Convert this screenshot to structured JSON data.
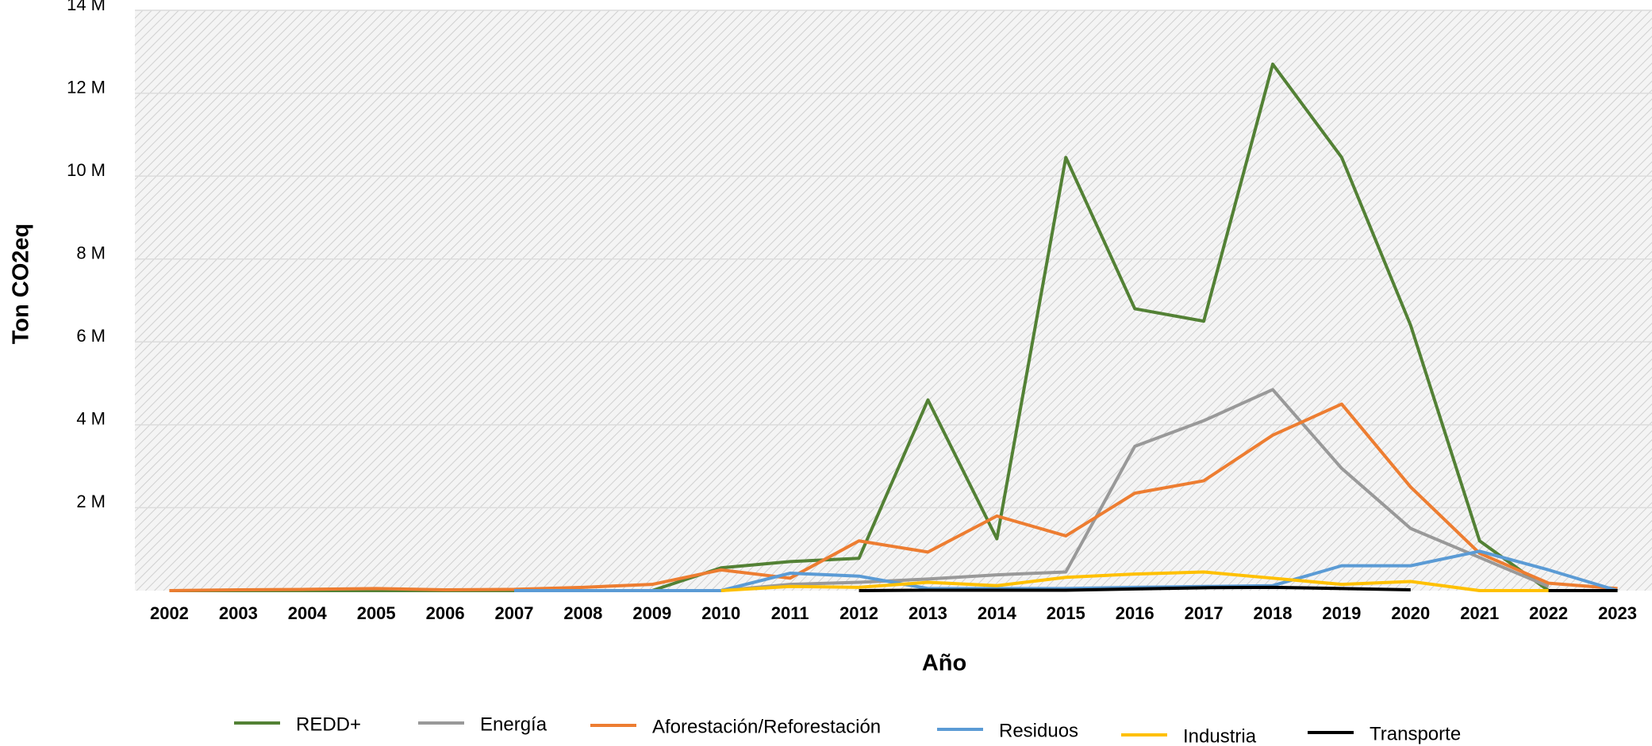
{
  "chart_data": {
    "type": "line",
    "x_label": "Año",
    "y_label": "Ton CO2eq",
    "categories": [
      "2002",
      "2003",
      "2004",
      "2005",
      "2006",
      "2007",
      "2008",
      "2009",
      "2010",
      "2011",
      "2012",
      "2013",
      "2014",
      "2015",
      "2016",
      "2017",
      "2018",
      "2019",
      "2020",
      "2021",
      "2022",
      "2023"
    ],
    "ylim": [
      0,
      14000000
    ],
    "yticks": [
      {
        "value": 2000000,
        "label": "2 M"
      },
      {
        "value": 4000000,
        "label": "4 M"
      },
      {
        "value": 6000000,
        "label": "6 M"
      },
      {
        "value": 8000000,
        "label": "8 M"
      },
      {
        "value": 10000000,
        "label": "10 M"
      },
      {
        "value": 12000000,
        "label": "12 M"
      },
      {
        "value": 14000000,
        "label": "14 M"
      }
    ],
    "grid": true,
    "legend": "bottom",
    "series": [
      {
        "name": "REDD+",
        "color": "#538135",
        "values": [
          0,
          0,
          0,
          0,
          0,
          0,
          0,
          0,
          550000,
          700000,
          780000,
          4600000,
          1250000,
          10450000,
          6800000,
          6500000,
          12700000,
          10450000,
          6400000,
          1200000,
          0,
          0
        ]
      },
      {
        "name": "Energía",
        "color": "#999999",
        "values": [
          null,
          null,
          null,
          null,
          null,
          null,
          null,
          null,
          0,
          150000,
          200000,
          280000,
          380000,
          450000,
          3480000,
          4100000,
          4850000,
          2950000,
          1500000,
          800000,
          100000,
          null
        ]
      },
      {
        "name": "Aforestación/Reforestación",
        "color": "#ed7d31",
        "values": [
          0,
          20000,
          30000,
          50000,
          20000,
          30000,
          80000,
          150000,
          500000,
          300000,
          1200000,
          930000,
          1800000,
          1320000,
          2350000,
          2650000,
          3750000,
          4500000,
          2500000,
          900000,
          180000,
          50000
        ]
      },
      {
        "name": "Residuos",
        "color": "#5b9bd5",
        "values": [
          null,
          null,
          null,
          null,
          null,
          0,
          0,
          0,
          0,
          420000,
          350000,
          50000,
          50000,
          50000,
          80000,
          100000,
          120000,
          600000,
          600000,
          950000,
          500000,
          0
        ]
      },
      {
        "name": "Industria",
        "color": "#ffc000",
        "values": [
          null,
          null,
          null,
          null,
          null,
          null,
          null,
          null,
          0,
          100000,
          80000,
          200000,
          120000,
          320000,
          400000,
          450000,
          300000,
          150000,
          220000,
          0,
          0,
          null
        ]
      },
      {
        "name": "Transporte",
        "color": "#000000",
        "values": [
          null,
          null,
          null,
          null,
          null,
          null,
          null,
          null,
          null,
          null,
          0,
          10000,
          10000,
          10000,
          40000,
          70000,
          80000,
          50000,
          20000,
          null,
          0,
          0
        ]
      }
    ]
  }
}
